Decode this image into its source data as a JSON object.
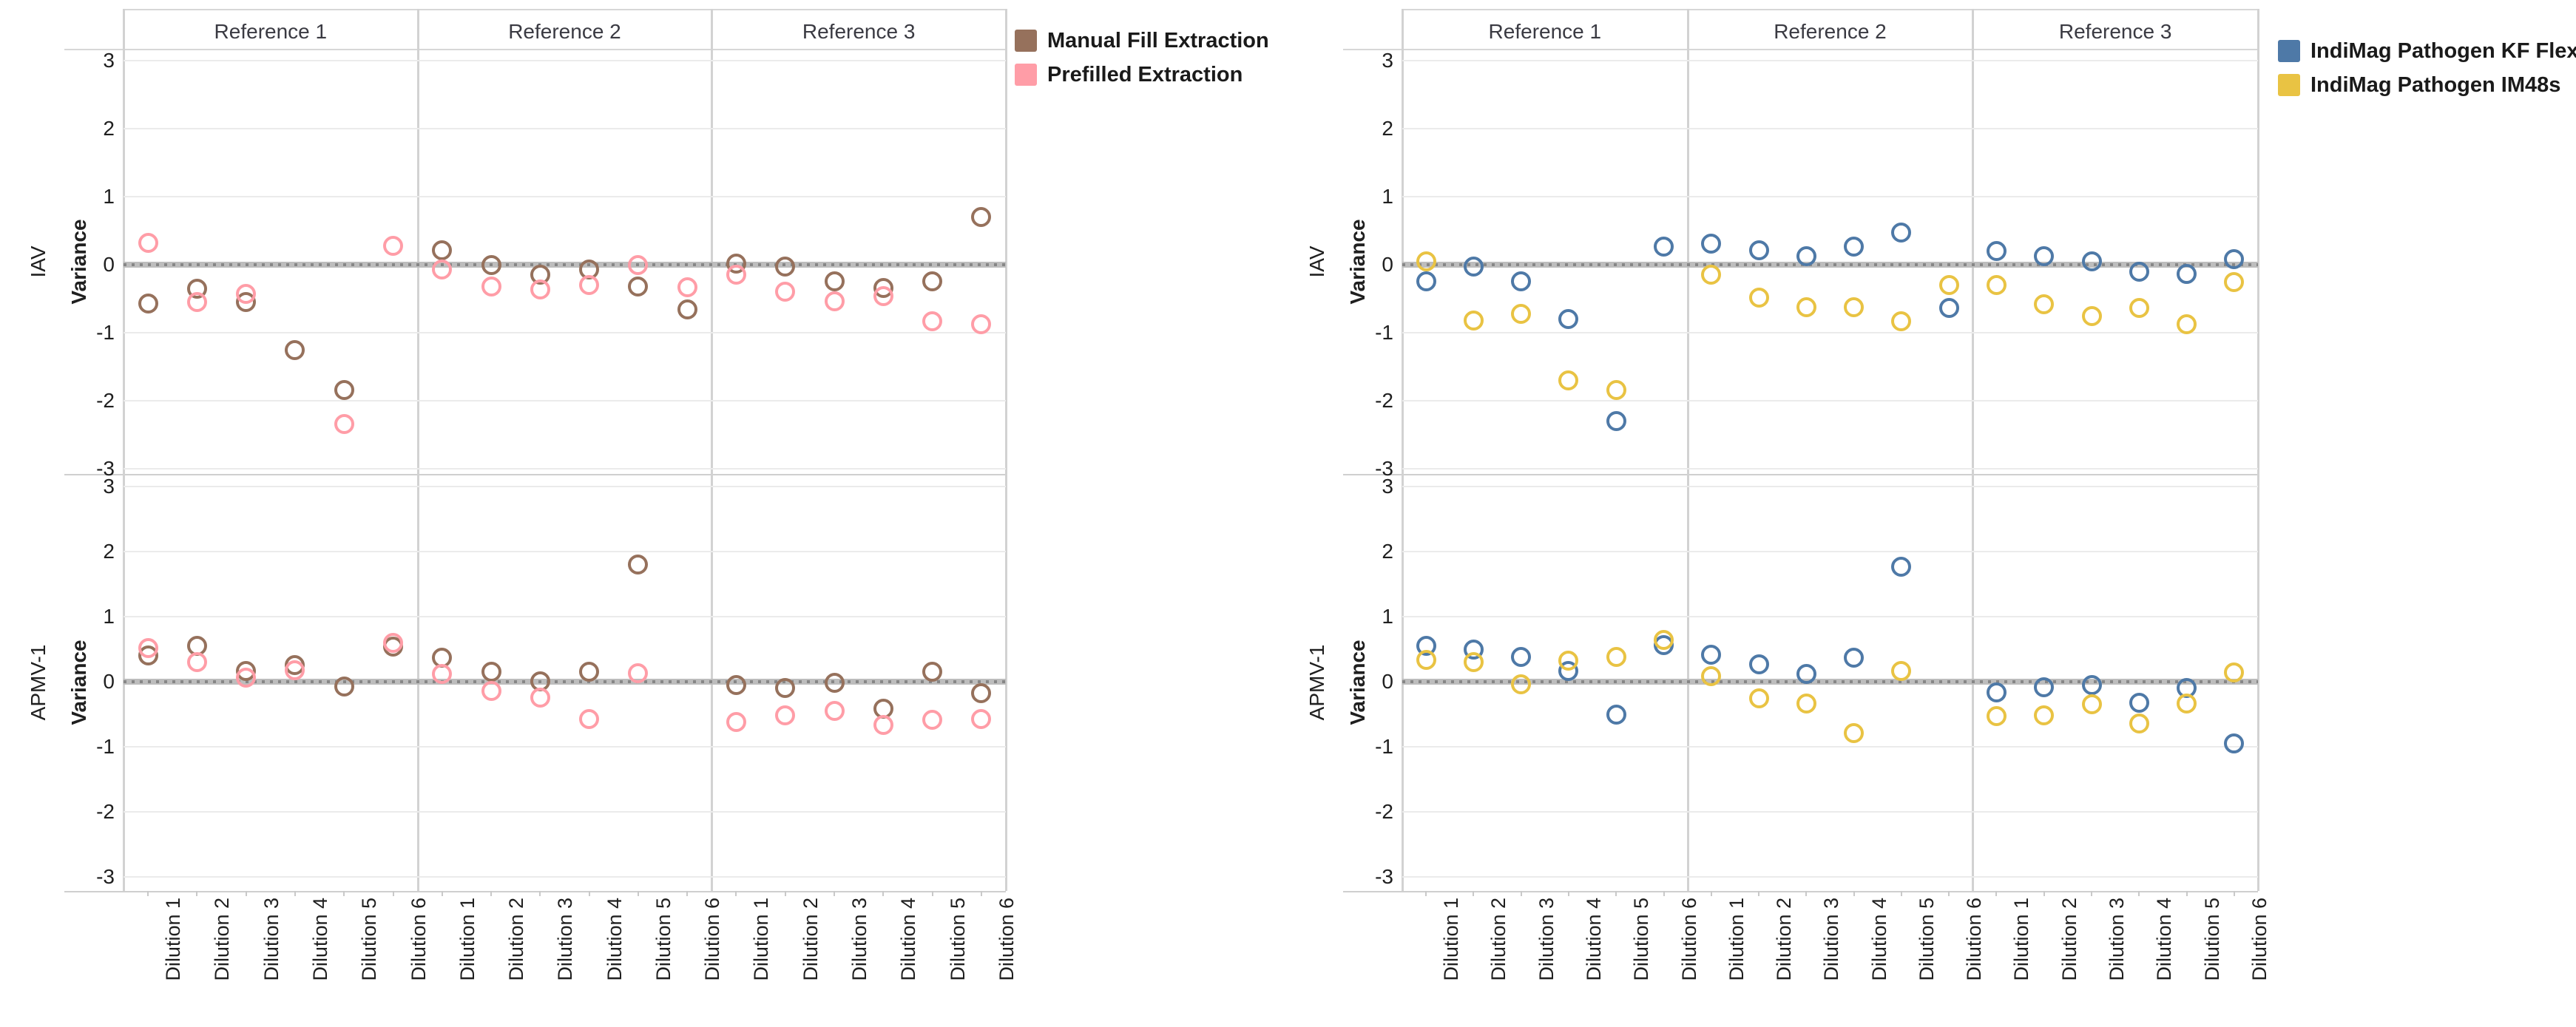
{
  "chart_data": [
    {
      "type": "scatter",
      "name": "extraction-comparison",
      "column_headers": [
        "Reference 1",
        "Reference 2",
        "Reference 3"
      ],
      "row_headers": [
        "IAV",
        "APMV-1"
      ],
      "y_axis_title": "Variance",
      "y_ticks": [
        "3",
        "2",
        "1",
        "0",
        "-1",
        "-2",
        "-3"
      ],
      "ylim": [
        -3.3,
        3.3
      ],
      "zero_reference_line": 0,
      "grid": "horizontal-integer-gridlines",
      "legend_position": "top-right",
      "x_tick_labels": [
        "Dilution 1",
        "Dilution 2",
        "Dilution 3",
        "Dilution 4",
        "Dilution 5",
        "Dilution 6"
      ],
      "series": [
        {
          "name": "Manual Fill Extraction",
          "color": "#96715C",
          "values": {
            "IAV": {
              "Reference 1": [
                -0.57,
                -0.35,
                -0.55,
                -1.26,
                -1.84,
                null
              ],
              "Reference 2": [
                0.21,
                -0.01,
                -0.15,
                -0.07,
                -0.32,
                -0.66
              ],
              "Reference 3": [
                0.02,
                -0.03,
                -0.24,
                -0.34,
                -0.24,
                0.7
              ]
            },
            "APMV-1": {
              "Reference 1": [
                0.4,
                0.55,
                0.16,
                0.26,
                -0.07,
                0.54
              ],
              "Reference 2": [
                0.37,
                0.15,
                0.01,
                0.15,
                1.8,
                null
              ],
              "Reference 3": [
                -0.05,
                -0.1,
                -0.02,
                -0.42,
                0.15,
                -0.18
              ]
            }
          }
        },
        {
          "name": "Prefilled Extraction",
          "color": "#FF9DA7",
          "values": {
            "IAV": {
              "Reference 1": [
                0.32,
                -0.55,
                -0.43,
                null,
                -2.34,
                0.28
              ],
              "Reference 2": [
                -0.07,
                -0.32,
                -0.36,
                -0.3,
                -0.01,
                -0.33
              ],
              "Reference 3": [
                -0.15,
                -0.4,
                -0.54,
                -0.46,
                -0.83,
                -0.87
              ]
            },
            "APMV-1": {
              "Reference 1": [
                0.52,
                0.3,
                0.06,
                0.18,
                null,
                0.6
              ],
              "Reference 2": [
                0.12,
                -0.14,
                -0.24,
                -0.57,
                0.13,
                null
              ],
              "Reference 3": [
                -0.62,
                -0.52,
                -0.45,
                -0.66,
                -0.58,
                -0.57
              ]
            }
          }
        }
      ]
    },
    {
      "type": "scatter",
      "name": "instrument-comparison",
      "column_headers": [
        "Reference 1",
        "Reference 2",
        "Reference 3"
      ],
      "row_headers": [
        "IAV",
        "APMV-1"
      ],
      "y_axis_title": "Variance",
      "y_ticks": [
        "3",
        "2",
        "1",
        "0",
        "-1",
        "-2",
        "-3"
      ],
      "ylim": [
        -3.3,
        3.3
      ],
      "zero_reference_line": 0,
      "grid": "horizontal-integer-gridlines",
      "legend_position": "top-right",
      "x_tick_labels": [
        "Dilution 1",
        "Dilution 2",
        "Dilution 3",
        "Dilution 4",
        "Dilution 5",
        "Dilution 6"
      ],
      "series": [
        {
          "name": "IndiMag Pathogen KF Flex",
          "color": "#4E79A7",
          "values": {
            "IAV": {
              "Reference 1": [
                -0.24,
                -0.03,
                -0.24,
                -0.8,
                -2.3,
                0.27
              ],
              "Reference 2": [
                0.31,
                0.21,
                0.13,
                0.27,
                0.47,
                -0.64
              ],
              "Reference 3": [
                0.2,
                0.12,
                0.05,
                -0.1,
                -0.14,
                0.08
              ]
            },
            "APMV-1": {
              "Reference 1": [
                0.55,
                0.5,
                0.38,
                0.17,
                -0.51,
                0.56
              ],
              "Reference 2": [
                0.41,
                0.27,
                0.12,
                0.37,
                1.77,
                null
              ],
              "Reference 3": [
                -0.17,
                -0.08,
                -0.05,
                -0.32,
                -0.1,
                -0.95
              ]
            }
          }
        },
        {
          "name": "IndiMag Pathogen IM48s",
          "color": "#E9C343",
          "values": {
            "IAV": {
              "Reference 1": [
                0.05,
                -0.82,
                -0.72,
                -1.7,
                -1.84,
                null
              ],
              "Reference 2": [
                -0.15,
                -0.48,
                -0.62,
                -0.62,
                -0.83,
                -0.3
              ],
              "Reference 3": [
                -0.3,
                -0.58,
                -0.75,
                -0.64,
                -0.87,
                -0.26
              ]
            },
            "APMV-1": {
              "Reference 1": [
                0.33,
                0.3,
                -0.04,
                0.32,
                0.38,
                0.64
              ],
              "Reference 2": [
                0.08,
                -0.25,
                -0.33,
                -0.79,
                0.16,
                null
              ],
              "Reference 3": [
                -0.53,
                -0.52,
                -0.35,
                -0.64,
                -0.34,
                0.14
              ]
            }
          }
        }
      ]
    }
  ]
}
